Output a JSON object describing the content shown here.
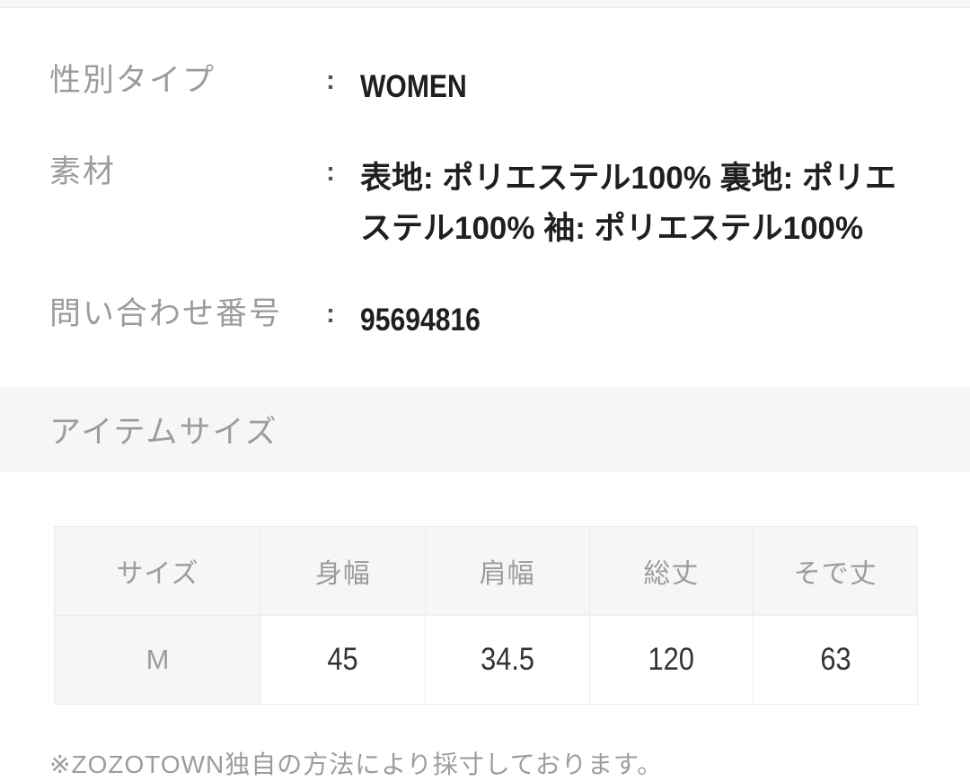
{
  "colors": {
    "band_background": "#f6f6f6",
    "label_text": "#9c9c9c",
    "value_text": "#1f1f1f",
    "table_border": "#ececec",
    "top_strip": "#f7f7f7"
  },
  "specs": {
    "colon": ":",
    "rows": [
      {
        "label": "性別タイプ",
        "value": "WOMEN"
      },
      {
        "label": "素材",
        "value": "表地: ポリエステル100% 裏地: ポリエステル100% 袖: ポリエステル100%"
      },
      {
        "label": "問い合わせ番号",
        "value": "95694816"
      }
    ]
  },
  "size_section": {
    "title": "アイテムサイズ",
    "table": {
      "columns": [
        "サイズ",
        "身幅",
        "肩幅",
        "総丈",
        "そで丈"
      ],
      "rows": [
        {
          "size": "M",
          "values": [
            "45",
            "34.5",
            "120",
            "63"
          ]
        }
      ]
    },
    "footnote": "※ZOZOTOWN独自の方法により採寸しております。"
  }
}
